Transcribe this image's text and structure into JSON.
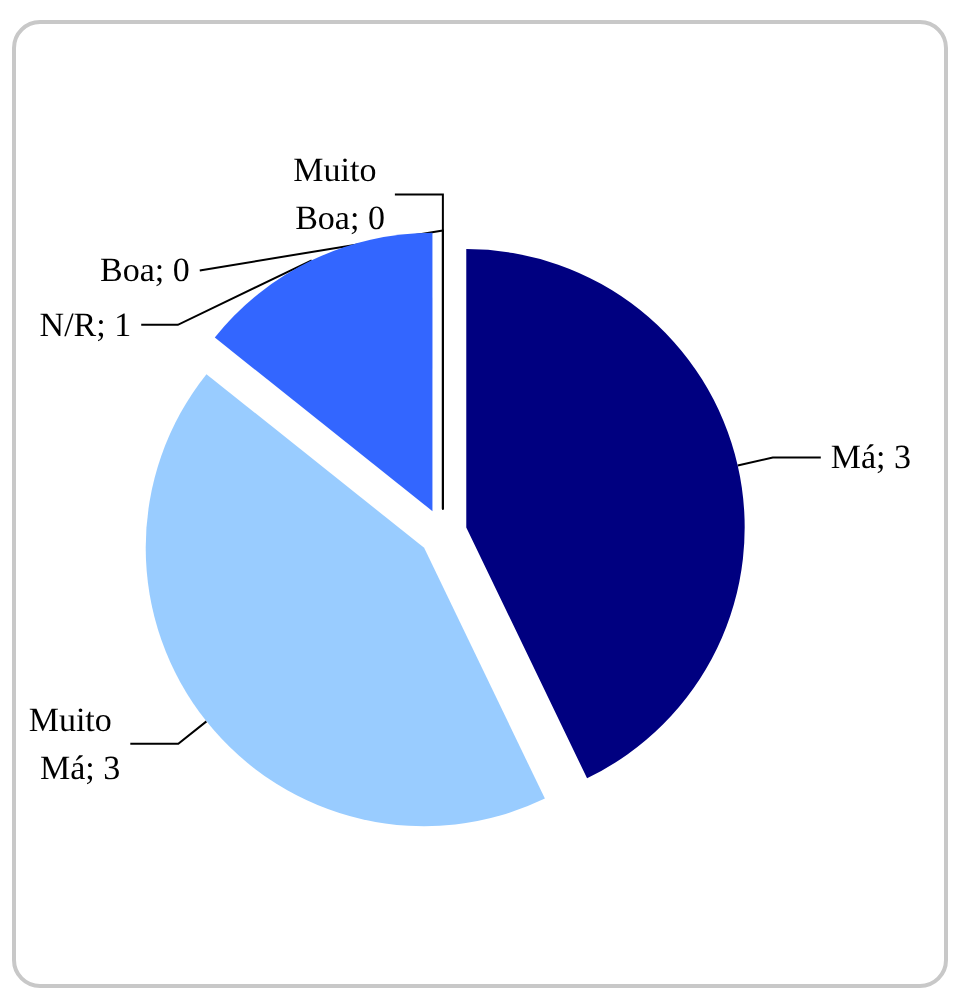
{
  "chart_data": {
    "type": "pie",
    "categories": [
      null,
      null,
      null,
      null,
      null
    ],
    "values": [
      3,
      3,
      1,
      0,
      0
    ],
    "colors": [
      "#000080",
      "#99ccff",
      "#3366ff",
      "#ffffff",
      "#000000"
    ],
    "value_labels": [
      "Má; 3",
      "Muito Má; 3",
      "N/R; 1",
      "Boa; 0",
      "Muito Boa; 0"
    ],
    "legend": false
  }
}
